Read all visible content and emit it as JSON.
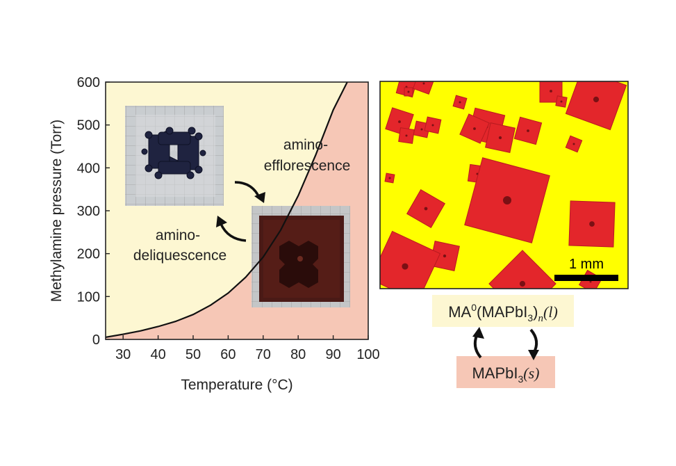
{
  "chart_data": {
    "type": "line",
    "title": "",
    "xlabel": "Temperature (°C)",
    "ylabel": "Methylamine pressure (Torr)",
    "xlim": [
      25,
      100
    ],
    "ylim": [
      0,
      600
    ],
    "xticks": [
      30,
      40,
      50,
      60,
      70,
      80,
      90,
      100
    ],
    "yticks": [
      0,
      100,
      200,
      300,
      400,
      500,
      600
    ],
    "grid": false,
    "series": [
      {
        "x": [
          25,
          30,
          35,
          40,
          45,
          50,
          55,
          60,
          65,
          70,
          75,
          80,
          85,
          90,
          94
        ],
        "y": [
          5,
          12,
          20,
          30,
          42,
          58,
          80,
          108,
          145,
          192,
          255,
          335,
          430,
          535,
          600
        ]
      }
    ],
    "regions": {
      "above_curve_color": "#fdf7d2",
      "below_curve_color": "#f6c7b6"
    },
    "annotations": {
      "efflorescence_line1": "amino-",
      "efflorescence_line2": "efflorescence",
      "deliquescence_line1": "amino-",
      "deliquescence_line2": "deliquescence"
    },
    "micrograph": {
      "scale_bar_label": "1 mm",
      "background_color": "#ffff00",
      "crystal_color": "#e3262b"
    },
    "scheme": {
      "liquid_box_color": "#fdf7d2",
      "solid_box_color": "#f6c7b6",
      "liquid_ma": "MA",
      "liquid_sup": "0",
      "liquid_open": "(MAPbI",
      "liquid_sub3": "3",
      "liquid_close": ")",
      "liquid_sub_n": "n",
      "liquid_phase": "(l)",
      "solid_main": "MAPbI",
      "solid_sub3": "3",
      "solid_phase": "(s)"
    }
  }
}
